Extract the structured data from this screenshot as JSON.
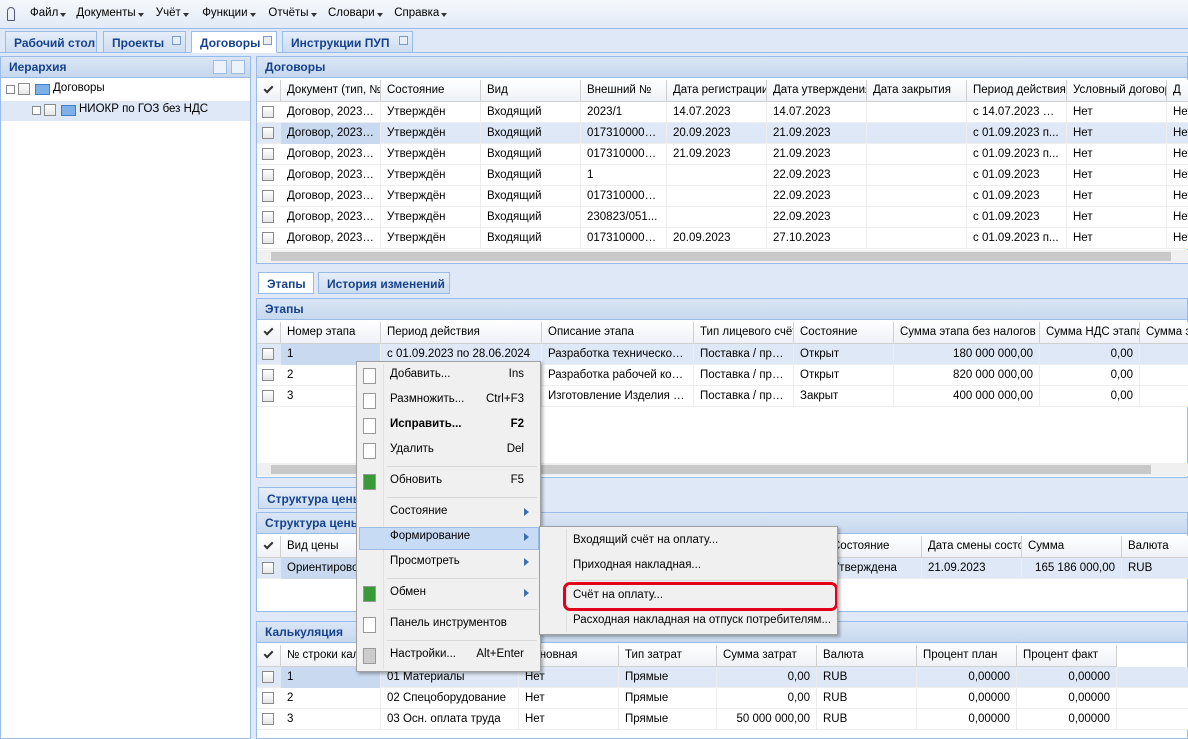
{
  "menu": {
    "items": [
      "Файл",
      "Документы",
      "Учёт",
      "Функции",
      "Отчёты",
      "Словари",
      "Справка"
    ]
  },
  "tabs": {
    "items": [
      "Рабочий стол",
      "Проекты",
      "Договоры",
      "Инструкции ПУП"
    ]
  },
  "hierarchy": {
    "title": "Иерархия",
    "nodes": [
      "Договоры",
      "НИОКР по ГОЗ без НДС"
    ]
  },
  "contracts": {
    "title": "Договоры",
    "columns": [
      "Документ (тип, №",
      "Состояние",
      "Вид",
      "Внешний №",
      "Дата регистрации.",
      "Дата утверждения",
      "Дата закрытия",
      "Период действия.",
      "Условный договор",
      "Д"
    ],
    "rows": [
      [
        "Договор, 2023/...",
        "Утверждён",
        "Входящий",
        "2023/1",
        "14.07.2023",
        "14.07.2023",
        null,
        "с 14.07.2023 по...",
        "Нет",
        "Нет"
      ],
      [
        "Договор, 2023/...",
        "Утверждён",
        "Входящий",
        "0173100009...",
        "20.09.2023",
        "21.09.2023",
        null,
        "с 01.09.2023 п...",
        "Нет",
        "Нет"
      ],
      [
        "Договор, 2023/...",
        "Утверждён",
        "Входящий",
        "0173100009...",
        "21.09.2023",
        "21.09.2023",
        null,
        "с 01.09.2023 п...",
        "Нет",
        "Нет"
      ],
      [
        "Договор, 2023/...",
        "Утверждён",
        "Входящий",
        "1",
        null,
        "22.09.2023",
        null,
        "с 01.09.2023",
        "Нет",
        "Нет"
      ],
      [
        "Договор, 2023/...",
        "Утверждён",
        "Входящий",
        "0173100009...",
        null,
        "22.09.2023",
        null,
        "с 01.09.2023",
        "Нет",
        "Нет"
      ],
      [
        "Договор, 2023/...",
        "Утверждён",
        "Входящий",
        "230823/051...",
        null,
        "22.09.2023",
        null,
        "с 01.09.2023",
        "Нет",
        "Нет"
      ],
      [
        "Договор, 2023/...",
        "Утверждён",
        "Входящий",
        "0173100009...",
        "20.09.2023",
        "27.10.2023",
        null,
        "с 01.09.2023 п...",
        "Нет",
        "Нет"
      ]
    ]
  },
  "subtabs": {
    "items": [
      "Этапы",
      "История изменений"
    ]
  },
  "stages": {
    "title": "Этапы",
    "columns": [
      "Номер этапа",
      "Период действия",
      "Описание этапа",
      "Тип лицевого счёт",
      "Состояние",
      "Сумма этапа без налогов",
      "Сумма НДС этапа",
      "Сумма э"
    ],
    "rows": [
      [
        "1",
        "с 01.09.2023 по 28.06.2024",
        "Разработка технического...",
        "Поставка / про...",
        "Открыт",
        "180 000 000,00",
        "0,00",
        null
      ],
      [
        "2",
        null,
        "Разработка рабочей конс...",
        "Поставка / про...",
        "Открыт",
        "820 000 000,00",
        "0,00",
        null
      ],
      [
        "3",
        null,
        "Изготовление Изделия и ...",
        "Поставка / про...",
        "Закрыт",
        "400 000 000,00",
        "0,00",
        null
      ]
    ]
  },
  "price_structure": {
    "tab": "Структура цены",
    "title": "Структура цены",
    "columns": [
      "Вид цены",
      null,
      "Состояние",
      "Дата смены состо",
      "Сумма",
      "Валюта"
    ],
    "rows": [
      [
        "Ориентировочная",
        null,
        "Утверждена",
        "21.09.2023",
        "165 186 000,00",
        "RUB"
      ]
    ]
  },
  "calculation": {
    "title": "Калькуляция",
    "columns": [
      "№ строки калькуляции",
      null,
      "Основная",
      "Тип затрат",
      "Сумма затрат",
      "Валюта",
      "Процент план",
      "Процент факт"
    ],
    "rows": [
      [
        "1",
        "01 Материалы",
        "Нет",
        "Прямые",
        "0,00",
        "RUB",
        "0,00000",
        "0,00000"
      ],
      [
        "2",
        "02 Спецоборудование",
        "Нет",
        "Прямые",
        "0,00",
        "RUB",
        "0,00000",
        "0,00000"
      ],
      [
        "3",
        "03 Осн. оплата труда",
        "Нет",
        "Прямые",
        "50 000 000,00",
        "RUB",
        "0,00000",
        "0,00000"
      ]
    ]
  },
  "context_menu": {
    "items": [
      {
        "label": "Добавить...",
        "shortcut": "Ins"
      },
      {
        "label": "Размножить...",
        "shortcut": "Ctrl+F3"
      },
      {
        "label": "Исправить...",
        "shortcut": "F2"
      },
      {
        "label": "Удалить",
        "shortcut": "Del"
      },
      {
        "label": "Обновить",
        "shortcut": "F5"
      },
      {
        "label": "Состояние",
        "shortcut": null
      },
      {
        "label": "Формирование",
        "shortcut": null
      },
      {
        "label": "Просмотреть",
        "shortcut": null
      },
      {
        "label": "Обмен",
        "shortcut": null
      },
      {
        "label": "Панель инструментов",
        "shortcut": null
      },
      {
        "label": "Настройки...",
        "shortcut": "Alt+Enter"
      }
    ]
  },
  "submenu": {
    "items": [
      "Входящий счёт на оплату...",
      "Приходная накладная...",
      "Счёт на оплату...",
      "Расходная накладная на отпуск потребителям..."
    ]
  }
}
